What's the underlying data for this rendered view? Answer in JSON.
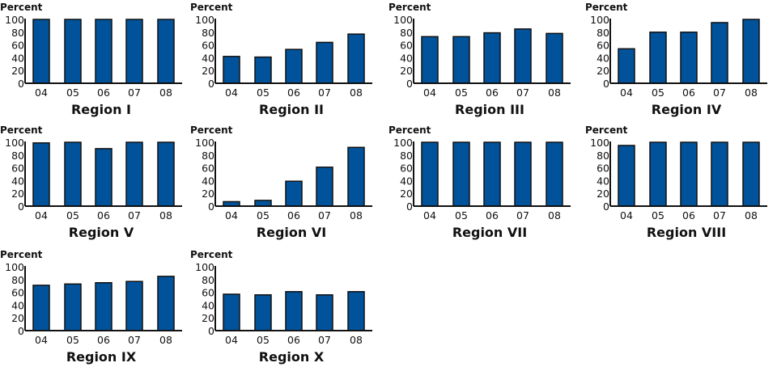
{
  "chart_data": [
    {
      "type": "bar",
      "title": "Region I",
      "ylabel": "Percent",
      "categories": [
        "04",
        "05",
        "06",
        "07",
        "08"
      ],
      "values": [
        100,
        100,
        100,
        100,
        100
      ],
      "ylim": [
        0,
        100
      ],
      "yticks": [
        0,
        20,
        40,
        60,
        80,
        100
      ],
      "grid": false
    },
    {
      "type": "bar",
      "title": "Region II",
      "ylabel": "Percent",
      "categories": [
        "04",
        "05",
        "06",
        "07",
        "08"
      ],
      "values": [
        42,
        41,
        53,
        64,
        77
      ],
      "ylim": [
        0,
        100
      ],
      "yticks": [
        0,
        20,
        40,
        60,
        80,
        100
      ],
      "grid": false
    },
    {
      "type": "bar",
      "title": "Region III",
      "ylabel": "Percent",
      "categories": [
        "04",
        "05",
        "06",
        "07",
        "08"
      ],
      "values": [
        73,
        73,
        79,
        85,
        78
      ],
      "ylim": [
        0,
        100
      ],
      "yticks": [
        0,
        20,
        40,
        60,
        80,
        100
      ],
      "grid": false
    },
    {
      "type": "bar",
      "title": "Region IV",
      "ylabel": "Percent",
      "categories": [
        "04",
        "05",
        "06",
        "07",
        "08"
      ],
      "values": [
        54,
        80,
        80,
        95,
        100
      ],
      "ylim": [
        0,
        100
      ],
      "yticks": [
        0,
        20,
        40,
        60,
        80,
        100
      ],
      "grid": false
    },
    {
      "type": "bar",
      "title": "Region V",
      "ylabel": "Percent",
      "categories": [
        "04",
        "05",
        "06",
        "07",
        "08"
      ],
      "values": [
        99,
        100,
        90,
        100,
        100
      ],
      "ylim": [
        0,
        100
      ],
      "yticks": [
        0,
        20,
        40,
        60,
        80,
        100
      ],
      "grid": false
    },
    {
      "type": "bar",
      "title": "Region VI",
      "ylabel": "Percent",
      "categories": [
        "04",
        "05",
        "06",
        "07",
        "08"
      ],
      "values": [
        7,
        9,
        39,
        61,
        92
      ],
      "ylim": [
        0,
        100
      ],
      "yticks": [
        0,
        20,
        40,
        60,
        80,
        100
      ],
      "grid": false
    },
    {
      "type": "bar",
      "title": "Region VII",
      "ylabel": "Percent",
      "categories": [
        "04",
        "05",
        "06",
        "07",
        "08"
      ],
      "values": [
        100,
        100,
        100,
        100,
        100
      ],
      "ylim": [
        0,
        100
      ],
      "yticks": [
        0,
        20,
        40,
        60,
        80,
        100
      ],
      "grid": false
    },
    {
      "type": "bar",
      "title": "Region VIII",
      "ylabel": "Percent",
      "categories": [
        "04",
        "05",
        "06",
        "07",
        "08"
      ],
      "values": [
        95,
        100,
        100,
        100,
        100
      ],
      "ylim": [
        0,
        100
      ],
      "yticks": [
        0,
        20,
        40,
        60,
        80,
        100
      ],
      "grid": false
    },
    {
      "type": "bar",
      "title": "Region IX",
      "ylabel": "Percent",
      "categories": [
        "04",
        "05",
        "06",
        "07",
        "08"
      ],
      "values": [
        71,
        73,
        75,
        77,
        85
      ],
      "ylim": [
        0,
        100
      ],
      "yticks": [
        0,
        20,
        40,
        60,
        80,
        100
      ],
      "grid": false
    },
    {
      "type": "bar",
      "title": "Region X",
      "ylabel": "Percent",
      "categories": [
        "04",
        "05",
        "06",
        "07",
        "08"
      ],
      "values": [
        57,
        56,
        61,
        56,
        61
      ],
      "ylim": [
        0,
        100
      ],
      "yticks": [
        0,
        20,
        40,
        60,
        80,
        100
      ],
      "grid": false
    }
  ],
  "colors": {
    "bar": "#00539b",
    "outline": "#111111"
  }
}
